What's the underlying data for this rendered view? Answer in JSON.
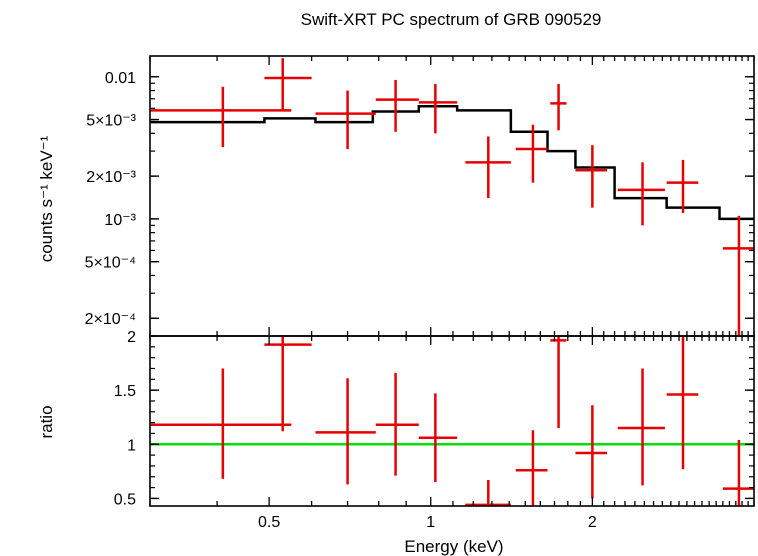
{
  "chart_data": [
    {
      "type": "scatter",
      "title": "Swift-XRT PC spectrum of GRB 090529",
      "xlabel": "",
      "ylabel": "counts s⁻¹ keV⁻¹",
      "xscale": "log",
      "yscale": "log",
      "xlim": [
        0.3,
        4.0
      ],
      "ylim": [
        0.00015,
        0.014
      ],
      "y_ticks": [
        {
          "value": 0.01,
          "label": "0.01"
        },
        {
          "value": 0.005,
          "label": "5×10⁻³"
        },
        {
          "value": 0.002,
          "label": "2×10⁻³"
        },
        {
          "value": 0.001,
          "label": "10⁻³"
        },
        {
          "value": 0.0005,
          "label": "5×10⁻⁴"
        },
        {
          "value": 0.0002,
          "label": "2×10⁻⁴"
        }
      ],
      "series": [
        {
          "kind": "data",
          "color": "#e60000",
          "points": [
            {
              "x": 0.41,
              "xlo": 0.3,
              "xhi": 0.55,
              "y": 0.0058,
              "ylo": 0.0032,
              "yhi": 0.0085
            },
            {
              "x": 0.53,
              "xlo": 0.49,
              "xhi": 0.6,
              "y": 0.0098,
              "ylo": 0.0058,
              "yhi": 0.0135
            },
            {
              "x": 0.7,
              "xlo": 0.61,
              "xhi": 0.79,
              "y": 0.0055,
              "ylo": 0.0031,
              "yhi": 0.008
            },
            {
              "x": 0.86,
              "xlo": 0.79,
              "xhi": 0.95,
              "y": 0.0069,
              "ylo": 0.0041,
              "yhi": 0.0095
            },
            {
              "x": 1.02,
              "xlo": 0.95,
              "xhi": 1.12,
              "y": 0.0066,
              "ylo": 0.004,
              "yhi": 0.0089
            },
            {
              "x": 1.28,
              "xlo": 1.16,
              "xhi": 1.41,
              "y": 0.0025,
              "ylo": 0.0014,
              "yhi": 0.0038
            },
            {
              "x": 1.55,
              "xlo": 1.44,
              "xhi": 1.65,
              "y": 0.0031,
              "ylo": 0.0018,
              "yhi": 0.0046
            },
            {
              "x": 1.73,
              "xlo": 1.67,
              "xhi": 1.79,
              "y": 0.0065,
              "ylo": 0.0042,
              "yhi": 0.0089
            },
            {
              "x": 2.0,
              "xlo": 1.86,
              "xhi": 2.13,
              "y": 0.0022,
              "ylo": 0.0012,
              "yhi": 0.0033
            },
            {
              "x": 2.48,
              "xlo": 2.23,
              "xhi": 2.73,
              "y": 0.0016,
              "ylo": 0.0009,
              "yhi": 0.0025
            },
            {
              "x": 2.95,
              "xlo": 2.75,
              "xhi": 3.15,
              "y": 0.0018,
              "ylo": 0.0011,
              "yhi": 0.0026
            },
            {
              "x": 3.75,
              "xlo": 3.5,
              "xhi": 4.0,
              "y": 0.00062,
              "ylo": 0.00015,
              "yhi": 0.00105
            }
          ]
        },
        {
          "kind": "model",
          "color": "#000000",
          "steps": [
            {
              "x0": 0.3,
              "x1": 0.49,
              "y": 0.0048
            },
            {
              "x0": 0.49,
              "x1": 0.61,
              "y": 0.0051
            },
            {
              "x0": 0.61,
              "x1": 0.78,
              "y": 0.0048
            },
            {
              "x0": 0.78,
              "x1": 0.95,
              "y": 0.0057
            },
            {
              "x0": 0.95,
              "x1": 1.12,
              "y": 0.0062
            },
            {
              "x0": 1.12,
              "x1": 1.41,
              "y": 0.0058
            },
            {
              "x0": 1.41,
              "x1": 1.65,
              "y": 0.0041
            },
            {
              "x0": 1.65,
              "x1": 1.86,
              "y": 0.003
            },
            {
              "x0": 1.86,
              "x1": 2.2,
              "y": 0.0023
            },
            {
              "x0": 2.2,
              "x1": 2.75,
              "y": 0.0014
            },
            {
              "x0": 2.75,
              "x1": 3.45,
              "y": 0.0012
            },
            {
              "x0": 3.45,
              "x1": 4.0,
              "y": 0.001
            }
          ]
        }
      ]
    },
    {
      "type": "scatter",
      "title": "",
      "xlabel": "Energy (keV)",
      "ylabel": "ratio",
      "xscale": "log",
      "yscale": "linear",
      "xlim": [
        0.3,
        4.0
      ],
      "ylim": [
        0.43,
        2.0
      ],
      "x_ticks": [
        {
          "value": 0.5,
          "label": "0.5"
        },
        {
          "value": 1,
          "label": "1"
        },
        {
          "value": 2,
          "label": "2"
        }
      ],
      "y_ticks": [
        {
          "value": 2,
          "label": "2"
        },
        {
          "value": 1.5,
          "label": "1.5"
        },
        {
          "value": 1,
          "label": "1"
        },
        {
          "value": 0.5,
          "label": "0.5"
        }
      ],
      "reference_line": {
        "y": 1,
        "color": "#00e000"
      },
      "series": [
        {
          "kind": "data",
          "color": "#e60000",
          "points": [
            {
              "x": 0.41,
              "xlo": 0.3,
              "xhi": 0.55,
              "y": 1.18,
              "ylo": 0.68,
              "yhi": 1.7
            },
            {
              "x": 0.53,
              "xlo": 0.49,
              "xhi": 0.6,
              "y": 1.92,
              "ylo": 1.12,
              "yhi": 2.0
            },
            {
              "x": 0.7,
              "xlo": 0.61,
              "xhi": 0.79,
              "y": 1.11,
              "ylo": 0.63,
              "yhi": 1.61
            },
            {
              "x": 0.86,
              "xlo": 0.79,
              "xhi": 0.95,
              "y": 1.18,
              "ylo": 0.71,
              "yhi": 1.66
            },
            {
              "x": 1.02,
              "xlo": 0.95,
              "xhi": 1.12,
              "y": 1.06,
              "ylo": 0.65,
              "yhi": 1.47
            },
            {
              "x": 1.28,
              "xlo": 1.16,
              "xhi": 1.41,
              "y": 0.44,
              "ylo": 0.43,
              "yhi": 0.67
            },
            {
              "x": 1.55,
              "xlo": 1.44,
              "xhi": 1.65,
              "y": 0.76,
              "ylo": 0.43,
              "yhi": 1.13
            },
            {
              "x": 1.73,
              "xlo": 1.67,
              "xhi": 1.79,
              "y": 1.96,
              "ylo": 1.15,
              "yhi": 2.0
            },
            {
              "x": 2.0,
              "xlo": 1.86,
              "xhi": 2.13,
              "y": 0.92,
              "ylo": 0.5,
              "yhi": 1.36
            },
            {
              "x": 2.48,
              "xlo": 2.23,
              "xhi": 2.73,
              "y": 1.15,
              "ylo": 0.62,
              "yhi": 1.7
            },
            {
              "x": 2.95,
              "xlo": 2.75,
              "xhi": 3.15,
              "y": 1.46,
              "ylo": 0.77,
              "yhi": 2.0
            },
            {
              "x": 3.75,
              "xlo": 3.5,
              "xhi": 4.0,
              "y": 0.59,
              "ylo": 0.43,
              "yhi": 1.04
            }
          ]
        }
      ]
    }
  ]
}
